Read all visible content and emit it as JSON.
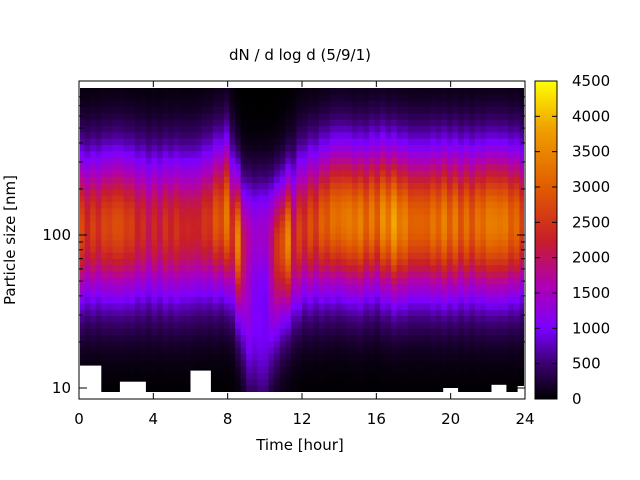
{
  "chart_data": {
    "type": "heatmap",
    "title": "dN / d log d (5/9/1)",
    "xlabel": "Time [hour]",
    "ylabel": "Particle size [nm]",
    "xlim": [
      0,
      24
    ],
    "ylim": [
      9,
      900
    ],
    "y_scale": "log",
    "x_ticks": [
      0,
      4,
      8,
      12,
      16,
      20,
      24
    ],
    "x_tick_labels": [
      "0",
      "4",
      "8",
      "12",
      "16",
      "20",
      "24"
    ],
    "y_ticks": [
      10,
      100
    ],
    "y_tick_labels": [
      "10",
      "100"
    ],
    "colorbar": {
      "min": 0,
      "max": 4500,
      "ticks": [
        0,
        500,
        1000,
        1500,
        2000,
        2500,
        3000,
        3500,
        4000,
        4500
      ],
      "tick_labels": [
        "0",
        "500",
        "1000",
        "1500",
        "2000",
        "2500",
        "3000",
        "3500",
        "4000",
        "4500"
      ],
      "colormap": [
        "#000000",
        "#3a006e",
        "#7a00ff",
        "#b000b0",
        "#c81e28",
        "#e05a00",
        "#f0a000",
        "#ffff00"
      ]
    },
    "summary_by_hour": {
      "hours": [
        0,
        2,
        4,
        6,
        8,
        9,
        10,
        12,
        14,
        15,
        16,
        17,
        18,
        20,
        22,
        24
      ],
      "mode_diameter_nm": [
        110,
        115,
        110,
        110,
        130,
        30,
        20,
        110,
        130,
        120,
        130,
        120,
        120,
        120,
        120,
        120
      ],
      "peak_dN_dlogd": [
        2600,
        2700,
        2300,
        2300,
        3000,
        1200,
        900,
        2700,
        3100,
        3500,
        3200,
        3500,
        3200,
        3100,
        3300,
        3000
      ]
    }
  }
}
